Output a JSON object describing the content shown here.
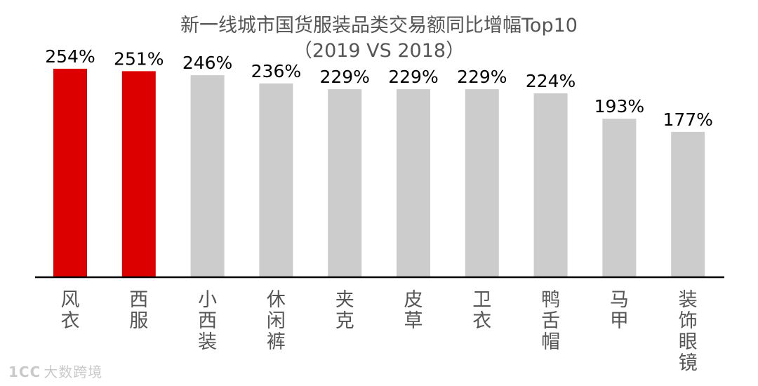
{
  "chart_data": {
    "type": "bar",
    "title": "新一线城市国货服装品类交易额同比增幅Top10",
    "subtitle": "（2019 VS 2018）",
    "categories": [
      "风衣",
      "西服",
      "小西装",
      "休闲裤",
      "夹克",
      "皮草",
      "卫衣",
      "鸭舌帽",
      "马甲",
      "装饰眼镜"
    ],
    "values": [
      254,
      251,
      246,
      236,
      229,
      229,
      229,
      224,
      193,
      177
    ],
    "value_labels": [
      "254%",
      "251%",
      "246%",
      "236%",
      "229%",
      "229%",
      "229%",
      "224%",
      "193%",
      "177%"
    ],
    "unit": "%",
    "highlight_indices": [
      0,
      1
    ],
    "ylim": [
      0,
      265
    ],
    "grid": false,
    "legend": "none"
  },
  "colors": {
    "highlight": "#dd0000",
    "bar": "#cccccc",
    "axis": "#000000",
    "label_text": "#000000",
    "category_text": "#555555",
    "title_text": "#555555"
  },
  "watermark": {
    "logo_text": "1CC",
    "text": "大数跨境"
  }
}
